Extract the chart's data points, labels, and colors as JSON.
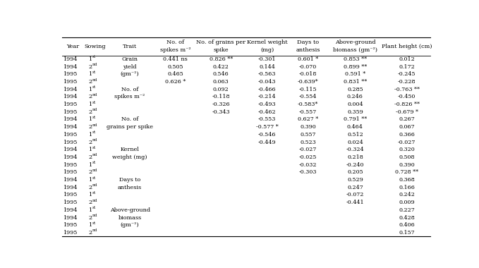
{
  "col_headers_line1": [
    "",
    "",
    "",
    "No. of",
    "No. of grains per",
    "Kernel weight",
    "Days to",
    "Above-ground",
    ""
  ],
  "col_headers_line2": [
    "Year",
    "Sowing",
    "Trait",
    "spikes m⁻²",
    "spike",
    "(mg)",
    "anthesis",
    "biomass (gm⁻²)",
    "Plant height (cm)"
  ],
  "rows": [
    [
      "1994",
      "1st",
      "Grain",
      "0.441 ns",
      "0.826 **",
      "-0.301",
      "0.601 *",
      "0.853 **",
      "0.012"
    ],
    [
      "1994",
      "2nd",
      "yield",
      "0.505",
      "0.422",
      "0.144",
      "-0.070",
      "0.899 **",
      "0.172"
    ],
    [
      "1995",
      "1st",
      "(gm⁻²)",
      "0.465",
      "0.546",
      "-0.563",
      "-0.018",
      "0.591 *",
      "-0.245"
    ],
    [
      "1995",
      "2nd",
      "",
      "0.626 *",
      "0.063",
      "-0.043",
      "-0.639*",
      "0.831 **",
      "-0.228"
    ],
    [
      "1994",
      "1st",
      "No. of",
      "",
      "0.092",
      "-0.466",
      "-0.115",
      "0.285",
      "-0.763 **"
    ],
    [
      "1994",
      "2nd",
      "spikes m⁻²",
      "",
      "-0.118",
      "-0.214",
      "-0.554",
      "0.246",
      "-0.450"
    ],
    [
      "1995",
      "1st",
      "",
      "",
      "-0.326",
      "-0.493",
      "-0.583*",
      "0.004",
      "-0.826 **"
    ],
    [
      "1995",
      "2nd",
      "",
      "",
      "-0.343",
      "-0.462",
      "-0.557",
      "0.359",
      "-0.679 *"
    ],
    [
      "1994",
      "1st",
      "No. of",
      "",
      "",
      "-0.553",
      "0.627 *",
      "0.791 **",
      "0.267"
    ],
    [
      "1994",
      "2nd",
      "grains per spike",
      "",
      "",
      "-0.577 *",
      "0.390",
      "0.464",
      "0.067"
    ],
    [
      "1995",
      "1st",
      "",
      "",
      "",
      "-0.546",
      "0.557",
      "0.512",
      "0.366"
    ],
    [
      "1995",
      "2nd",
      "",
      "",
      "",
      "-0.449",
      "0.523",
      "0.024",
      "-0.027"
    ],
    [
      "1994",
      "1st",
      "Kernel",
      "",
      "",
      "",
      "-0.027",
      "-0.324",
      "0.320"
    ],
    [
      "1994",
      "2nd",
      "weight (mg)",
      "",
      "",
      "",
      "-0.025",
      "0.218",
      "0.508"
    ],
    [
      "1995",
      "1st",
      "",
      "",
      "",
      "",
      "-0.032",
      "-0.240",
      "0.390"
    ],
    [
      "1995",
      "2nd",
      "",
      "",
      "",
      "",
      "-0.303",
      "0.205",
      "0.728 **"
    ],
    [
      "1994",
      "1st",
      "Days to",
      "",
      "",
      "",
      "",
      "0.529",
      "0.368"
    ],
    [
      "1994",
      "2nd",
      "anthesis",
      "",
      "",
      "",
      "",
      "0.247",
      "0.166"
    ],
    [
      "1995",
      "1st",
      "",
      "",
      "",
      "",
      "",
      "-0.072",
      "0.242"
    ],
    [
      "1995",
      "2nd",
      "",
      "",
      "",
      "",
      "",
      "-0.441",
      "0.009"
    ],
    [
      "1994",
      "1st",
      "Above-ground",
      "",
      "",
      "",
      "",
      "",
      "0.227"
    ],
    [
      "1994",
      "2nd",
      "biomass",
      "",
      "",
      "",
      "",
      "",
      "0.428"
    ],
    [
      "1995",
      "1st",
      "(gm⁻²)",
      "",
      "",
      "",
      "",
      "",
      "0.406"
    ],
    [
      "1995",
      "2nd",
      "",
      "",
      "",
      "",
      "",
      "",
      "0.157"
    ]
  ],
  "font_size": 5.8,
  "header_font_size": 5.9,
  "bg_color": "#ffffff"
}
